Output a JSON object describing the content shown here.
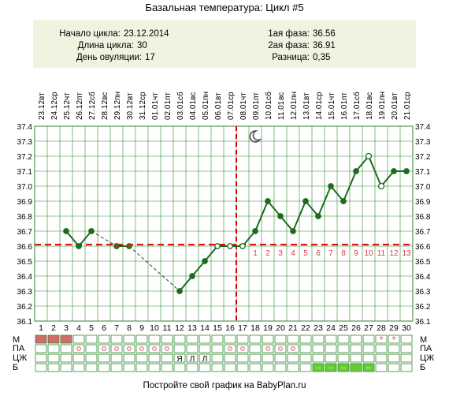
{
  "title": "Базальная температура: Цикл #5",
  "footer": "Постройте свой график на BabyPlan.ru",
  "info": {
    "left": [
      {
        "label": "Начало цикла:",
        "value": "23.12.2014"
      },
      {
        "label": "Длина цикла:",
        "value": "30"
      },
      {
        "label": "День овуляции:",
        "value": "17"
      }
    ],
    "right": [
      {
        "label": "1ая фаза:",
        "value": "36.56"
      },
      {
        "label": "2ая фаза:",
        "value": "36.91"
      },
      {
        "label": "Разница:",
        "value": "0,35"
      }
    ]
  },
  "row_labels": [
    "М",
    "ПА",
    "ЦЖ",
    "Б"
  ],
  "colors": {
    "line": "#1e6b1e",
    "grid": "#2f8a2f",
    "coverline": "#dd0000",
    "info_bg": "#eef4e0",
    "menses": "#d46a6a",
    "marker": "#66cc33",
    "luteal_numbers": "#cc4444",
    "moon": "#555555"
  },
  "chart_data": {
    "type": "line",
    "days": [
      1,
      2,
      3,
      4,
      5,
      6,
      7,
      8,
      9,
      10,
      11,
      12,
      13,
      14,
      15,
      16,
      17,
      18,
      19,
      20,
      21,
      22,
      23,
      24,
      25,
      26,
      27,
      28,
      29,
      30
    ],
    "dates": [
      "23.12",
      "24.12",
      "25.12",
      "26.12",
      "27.12",
      "28.12",
      "29.12",
      "30.12",
      "31.12",
      "01.01",
      "02.01",
      "03.01",
      "04.01",
      "05.01",
      "06.01",
      "07.01",
      "08.01",
      "09.01",
      "10.01",
      "11.01",
      "12.01",
      "13.01",
      "14.01",
      "15.01",
      "16.01",
      "17.01",
      "18.01",
      "19.01",
      "20.01",
      "21.01"
    ],
    "weekdays": [
      "вт",
      "ср",
      "чт",
      "пт",
      "сб",
      "вс",
      "пн",
      "вт",
      "ср",
      "чт",
      "пт",
      "сб",
      "вс",
      "пн",
      "вт",
      "ср",
      "чт",
      "пт",
      "сб",
      "вс",
      "пн",
      "вт",
      "ср",
      "чт",
      "пт",
      "сб",
      "вс",
      "пн",
      "вт",
      "ср"
    ],
    "temperatures": [
      null,
      null,
      36.7,
      36.6,
      36.7,
      null,
      36.6,
      36.6,
      null,
      null,
      null,
      36.3,
      36.4,
      36.5,
      36.6,
      36.6,
      36.6,
      36.7,
      36.9,
      36.8,
      36.7,
      36.9,
      36.8,
      37.0,
      36.9,
      37.1,
      37.2,
      37.0,
      37.1,
      37.1
    ],
    "excluded_days": [
      27,
      28
    ],
    "hollow_days": [
      15,
      16,
      17
    ],
    "ylim": [
      36.1,
      37.4
    ],
    "yticks": [
      "36.1",
      "36.2",
      "36.3",
      "36.4",
      "36.5",
      "36.6",
      "36.7",
      "36.8",
      "36.9",
      "37.0",
      "37.1",
      "37.2",
      "37.3",
      "37.4"
    ],
    "coverline": 36.61,
    "ovulation_day": 17,
    "moon_day": 18,
    "luteal_numbers": [
      "1",
      "2",
      "3",
      "4",
      "5",
      "6",
      "7",
      "8",
      "9",
      "10",
      "11",
      "12",
      "13"
    ],
    "rows": {
      "menses_days": [
        1,
        2,
        3
      ],
      "pa_days": [
        4,
        6,
        7,
        8,
        9,
        10,
        11,
        16,
        17,
        19,
        20,
        21
      ],
      "star_days": [
        28,
        29
      ],
      "cervical": [
        {
          "day": 12,
          "text": "Я"
        },
        {
          "day": 13,
          "text": "Л"
        },
        {
          "day": 14,
          "text": "Л"
        }
      ],
      "b_marked_days": [
        23,
        24,
        25,
        27
      ],
      "b_mark_text": "--",
      "green_days": [
        23,
        24,
        25,
        26,
        27
      ]
    }
  }
}
